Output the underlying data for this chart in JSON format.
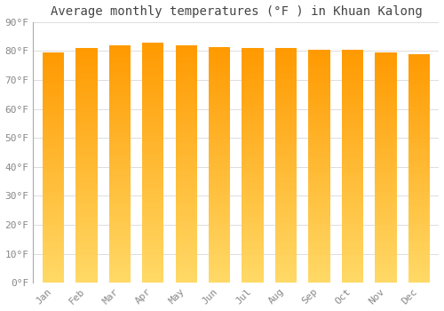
{
  "title": "Average monthly temperatures (°F ) in Khuan Kalong",
  "months": [
    "Jan",
    "Feb",
    "Mar",
    "Apr",
    "May",
    "Jun",
    "Jul",
    "Aug",
    "Sep",
    "Oct",
    "Nov",
    "Dec"
  ],
  "values": [
    79.5,
    81.0,
    82.0,
    83.0,
    82.0,
    81.5,
    81.0,
    81.0,
    80.5,
    80.5,
    79.5,
    79.0
  ],
  "bar_color_top": "#FFAA00",
  "bar_color_bottom": "#FFD966",
  "background_color": "#FFFFFF",
  "plot_bg_color": "#FFFFFF",
  "grid_color": "#DDDDDD",
  "text_color": "#888888",
  "ylim": [
    0,
    90
  ],
  "yticks": [
    0,
    10,
    20,
    30,
    40,
    50,
    60,
    70,
    80,
    90
  ],
  "title_fontsize": 10,
  "tick_fontsize": 8
}
